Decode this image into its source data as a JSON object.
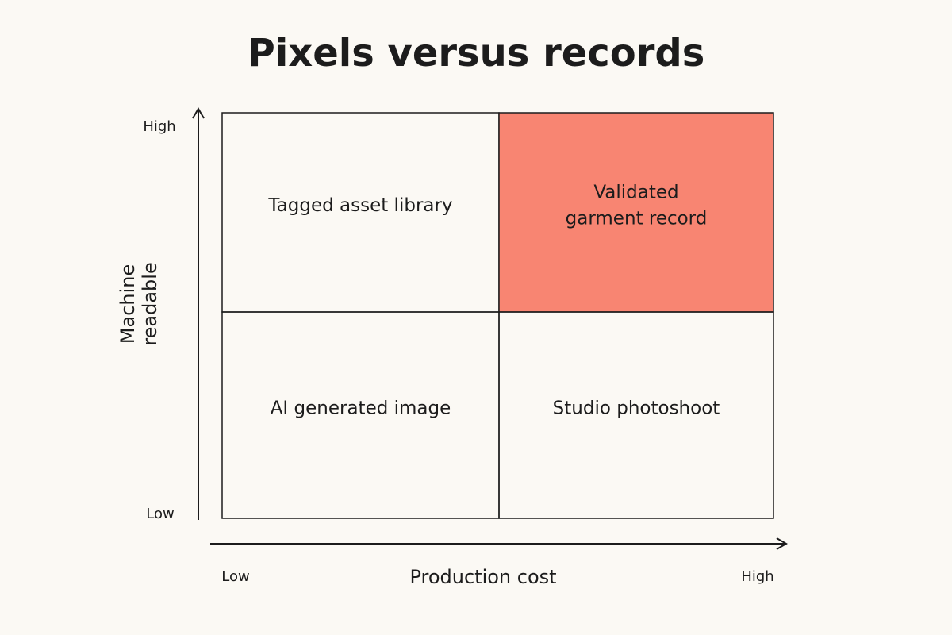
{
  "title": "Pixels versus records",
  "y_axis": {
    "label_lines": [
      "Machine",
      "readable"
    ],
    "high": "High",
    "low": "Low"
  },
  "x_axis": {
    "label": "Production cost",
    "low": "Low",
    "high": "High"
  },
  "quadrants": [
    {
      "label_lines": [
        "Tagged asset library"
      ]
    },
    {
      "label_lines": [
        "Validated",
        "garment record"
      ],
      "color": "#f88572"
    },
    {
      "label_lines": [
        "AI generated image"
      ]
    },
    {
      "label_lines": [
        "Studio photoshoot"
      ]
    }
  ]
}
